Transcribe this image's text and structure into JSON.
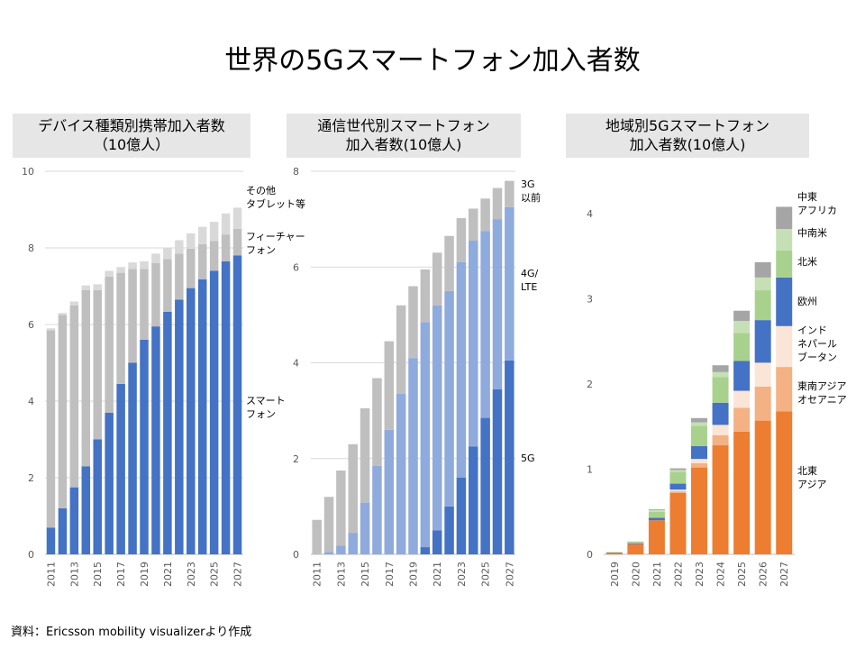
{
  "title": "世界の5Gスマートフォン加入者数",
  "source": "資料：Ericsson mobility visualizerより作成",
  "colors": {
    "smartphone": "#4472c4",
    "feature": "#bfbfbf",
    "other": "#d9d9d9",
    "g5": "#4472c4",
    "g4": "#8faadc",
    "g3": "#bfbfbf",
    "ne_asia": "#ed7d31",
    "se_asia": "#f4b183",
    "india": "#fbe5d6",
    "europe": "#4472c4",
    "north_america": "#a9d18e",
    "latam": "#c5e0b4",
    "mea": "#a5a5a5"
  },
  "chart_data": [
    {
      "type": "bar",
      "stacked": true,
      "title_lines": [
        "デバイス種類別携帯加入者数",
        "（10億人）"
      ],
      "categories": [
        "2011",
        "2012",
        "2013",
        "2014",
        "2015",
        "2016",
        "2017",
        "2018",
        "2019",
        "2020",
        "2021",
        "2022",
        "2023",
        "2024",
        "2025",
        "2026",
        "2027"
      ],
      "x_tick_labels": [
        "2011",
        "2013",
        "2015",
        "2017",
        "2019",
        "2021",
        "2023",
        "2025",
        "2027"
      ],
      "ylim": [
        0,
        10
      ],
      "y_ticks": [
        "0",
        "2",
        "4",
        "6",
        "8",
        "10"
      ],
      "series": [
        {
          "name": "スマートフォン",
          "label_lines": [
            "スマート",
            "フォン"
          ],
          "color": "#4472c4",
          "values": [
            0.7,
            1.2,
            1.75,
            2.3,
            3.0,
            3.7,
            4.45,
            5.0,
            5.6,
            5.95,
            6.33,
            6.65,
            6.95,
            7.18,
            7.4,
            7.65,
            7.8
          ]
        },
        {
          "name": "フィーチャーフォン",
          "label_lines": [
            "フィーチャー",
            "フォン"
          ],
          "color": "#bfbfbf",
          "values": [
            5.15,
            5.05,
            4.75,
            4.6,
            3.9,
            3.55,
            2.9,
            2.45,
            1.85,
            1.65,
            1.38,
            1.2,
            1.03,
            0.92,
            0.78,
            0.7,
            0.7
          ]
        },
        {
          "name": "その他タブレット等",
          "label_lines": [
            "その他",
            "タブレット等"
          ],
          "color": "#d9d9d9",
          "values": [
            0.05,
            0.05,
            0.1,
            0.12,
            0.15,
            0.15,
            0.15,
            0.17,
            0.2,
            0.25,
            0.3,
            0.35,
            0.4,
            0.45,
            0.5,
            0.55,
            0.55
          ]
        }
      ]
    },
    {
      "type": "bar",
      "stacked": true,
      "title_lines": [
        "通信世代別スマートフォン",
        "加入者数(10億人)"
      ],
      "categories": [
        "2011",
        "2012",
        "2013",
        "2014",
        "2015",
        "2016",
        "2017",
        "2018",
        "2019",
        "2020",
        "2021",
        "2022",
        "2023",
        "2024",
        "2025",
        "2026",
        "2027"
      ],
      "x_tick_labels": [
        "2011",
        "2013",
        "2015",
        "2017",
        "2019",
        "2021",
        "2023",
        "2025",
        "2027"
      ],
      "ylim": [
        0,
        8
      ],
      "y_ticks": [
        "0",
        "2",
        "4",
        "6",
        "8"
      ],
      "series": [
        {
          "name": "5G",
          "label_lines": [
            "5G"
          ],
          "color": "#4472c4",
          "values": [
            0,
            0,
            0,
            0,
            0,
            0,
            0,
            0,
            0,
            0.15,
            0.5,
            1.0,
            1.6,
            2.25,
            2.85,
            3.45,
            4.05
          ]
        },
        {
          "name": "4G/LTE",
          "label_lines": [
            "4G/",
            "LTE"
          ],
          "color": "#8faadc",
          "values": [
            0,
            0.05,
            0.18,
            0.45,
            1.08,
            1.85,
            2.6,
            3.35,
            4.1,
            4.7,
            4.7,
            4.5,
            4.5,
            4.3,
            3.9,
            3.55,
            3.2
          ]
        },
        {
          "name": "3G以前",
          "label_lines": [
            "3G",
            "以前"
          ],
          "color": "#bfbfbf",
          "values": [
            0.72,
            1.15,
            1.57,
            1.85,
            1.97,
            1.83,
            1.85,
            1.85,
            1.5,
            1.1,
            1.1,
            1.15,
            0.92,
            0.67,
            0.68,
            0.65,
            0.55
          ]
        }
      ]
    },
    {
      "type": "bar",
      "stacked": true,
      "title_lines": [
        "地域別5Gスマートフォン",
        "加入者数(10億人)"
      ],
      "categories": [
        "2019",
        "2020",
        "2021",
        "2022",
        "2023",
        "2024",
        "2025",
        "2026",
        "2027"
      ],
      "x_tick_labels": [
        "2019",
        "2020",
        "2021",
        "2022",
        "2023",
        "2024",
        "2025",
        "2026",
        "2027"
      ],
      "ylim": [
        0,
        4.5
      ],
      "y_ticks": [
        "0",
        "1",
        "2",
        "3",
        "4"
      ],
      "series": [
        {
          "name": "北東アジア",
          "label_lines": [
            "北東",
            "アジア"
          ],
          "color": "#ed7d31",
          "values": [
            0.02,
            0.12,
            0.4,
            0.72,
            1.02,
            1.28,
            1.44,
            1.57,
            1.68
          ]
        },
        {
          "name": "東南アジアオセアニア",
          "label_lines": [
            "東南アジア",
            "オセアニア"
          ],
          "color": "#f4b183",
          "values": [
            0,
            0,
            0,
            0.02,
            0.05,
            0.12,
            0.28,
            0.4,
            0.52
          ]
        },
        {
          "name": "インドネパールブータン",
          "label_lines": [
            "インド",
            "ネパール",
            "ブータン"
          ],
          "color": "#fbe5d6",
          "values": [
            0,
            0,
            0,
            0.02,
            0.05,
            0.12,
            0.2,
            0.28,
            0.48
          ]
        },
        {
          "name": "欧州",
          "label_lines": [
            "欧州"
          ],
          "color": "#4472c4",
          "values": [
            0.003,
            0.01,
            0.03,
            0.07,
            0.15,
            0.26,
            0.35,
            0.5,
            0.57
          ]
        },
        {
          "name": "北米",
          "label_lines": [
            "北米"
          ],
          "color": "#a9d18e",
          "values": [
            0.003,
            0.015,
            0.07,
            0.14,
            0.24,
            0.3,
            0.33,
            0.35,
            0.32
          ]
        },
        {
          "name": "中南米",
          "label_lines": [
            "中南米"
          ],
          "color": "#c5e0b4",
          "values": [
            0,
            0.002,
            0.02,
            0.02,
            0.04,
            0.06,
            0.14,
            0.15,
            0.25
          ]
        },
        {
          "name": "中東アフリカ",
          "label_lines": [
            "中東",
            "アフリカ"
          ],
          "color": "#a5a5a5",
          "values": [
            0,
            0.003,
            0.01,
            0.02,
            0.05,
            0.08,
            0.12,
            0.18,
            0.26
          ]
        }
      ]
    }
  ]
}
